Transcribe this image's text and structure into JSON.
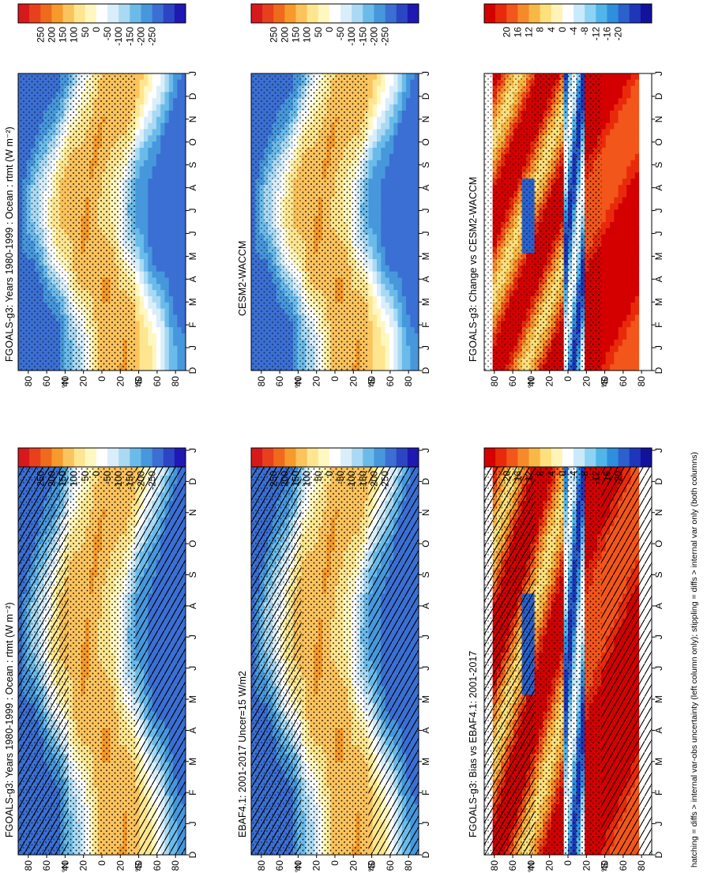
{
  "footnote": "hatching = diffs > internal var-obs uncertainty (left column only); stippling = diffs > internal var only (both columns)",
  "chart_data": [
    {
      "type": "heatmap",
      "title": "FGOALS-g3: Years 1980-1999 : Ocean : rtmt (W m⁻²)",
      "field": "model",
      "hatching": true,
      "stippling": true,
      "x_ticks": [
        "D",
        "J",
        "F",
        "M",
        "A",
        "M",
        "J",
        "J",
        "A",
        "S",
        "O",
        "N",
        "D",
        "J"
      ],
      "y_ticks": [
        "80",
        "60",
        "40",
        "20",
        "0",
        "20",
        "40",
        "60",
        "80"
      ],
      "lat_labels": [
        "°N",
        "°S"
      ],
      "colorbar": {
        "labels": [
          "250",
          "200",
          "150",
          "100",
          "50",
          "0",
          "-50",
          "-100",
          "-150",
          "-200",
          "-250"
        ]
      }
    },
    {
      "type": "heatmap",
      "title": "EBAF4.1: 2001-2017 Uncer=15 W/m2",
      "field": "model",
      "hatching": true,
      "stippling": true,
      "x_ticks": [
        "D",
        "J",
        "F",
        "M",
        "A",
        "M",
        "J",
        "J",
        "A",
        "S",
        "O",
        "N",
        "D",
        "J"
      ],
      "y_ticks": [
        "80",
        "60",
        "40",
        "20",
        "0",
        "20",
        "40",
        "60",
        "80"
      ],
      "lat_labels": [
        "°N",
        "°S"
      ],
      "colorbar": {
        "labels": [
          "250",
          "200",
          "150",
          "100",
          "50",
          "0",
          "-50",
          "-100",
          "-150",
          "-200",
          "-250"
        ]
      }
    },
    {
      "type": "heatmap",
      "title": "FGOALS-g3: Bias vs EBAF4.1: 2001-2017",
      "field": "diff",
      "hatching": true,
      "stippling": true,
      "x_ticks": [
        "D",
        "J",
        "F",
        "M",
        "A",
        "M",
        "J",
        "J",
        "A",
        "S",
        "O",
        "N",
        "D",
        "J"
      ],
      "y_ticks": [
        "80",
        "60",
        "40",
        "20",
        "0",
        "20",
        "40",
        "60",
        "80"
      ],
      "lat_labels": [
        "°N",
        "°S"
      ],
      "colorbar": {
        "labels": [
          "20",
          "16",
          "12",
          "8",
          "4",
          "0",
          "-4",
          "-8",
          "-12",
          "-16",
          "-20"
        ]
      }
    },
    {
      "type": "heatmap",
      "title": "",
      "field": "model",
      "hatching": false,
      "stippling": true,
      "x_ticks": [
        "D",
        "J",
        "F",
        "M",
        "A",
        "M",
        "J",
        "J",
        "A",
        "S",
        "O",
        "N",
        "D",
        "J"
      ],
      "y_ticks": [
        "80",
        "60",
        "40",
        "20",
        "0",
        "20",
        "40",
        "60",
        "80"
      ],
      "lat_labels": [
        "°N",
        "°S"
      ],
      "colorbar": {
        "labels": [
          "250",
          "200",
          "150",
          "100",
          "50",
          "0",
          "-50",
          "-100",
          "-150",
          "-200",
          "-250"
        ]
      }
    },
    {
      "type": "heatmap",
      "title": "CESM2-WACCM",
      "field": "model",
      "hatching": false,
      "stippling": true,
      "x_ticks": [
        "D",
        "J",
        "F",
        "M",
        "A",
        "M",
        "J",
        "J",
        "A",
        "S",
        "O",
        "N",
        "D",
        "J"
      ],
      "y_ticks": [
        "80",
        "60",
        "40",
        "20",
        "0",
        "20",
        "40",
        "60",
        "80"
      ],
      "lat_labels": [
        "°N",
        "°S"
      ],
      "colorbar": {
        "labels": [
          "250",
          "200",
          "150",
          "100",
          "50",
          "0",
          "-50",
          "-100",
          "-150",
          "-200",
          "-250"
        ]
      }
    },
    {
      "type": "heatmap",
      "title": "FGOALS-g3: Change vs CESM2-WACCM",
      "field": "diff",
      "hatching": false,
      "stippling": true,
      "x_ticks": [
        "D",
        "J",
        "F",
        "M",
        "A",
        "M",
        "J",
        "J",
        "A",
        "S",
        "O",
        "N",
        "D",
        "J"
      ],
      "y_ticks": [
        "80",
        "60",
        "40",
        "20",
        "0",
        "20",
        "40",
        "60",
        "80"
      ],
      "lat_labels": [
        "°N",
        "°S"
      ],
      "colorbar": {
        "labels": [
          "20",
          "16",
          "12",
          "8",
          "4",
          "0",
          "-4",
          "-8",
          "-12",
          "-16",
          "-20"
        ]
      }
    }
  ],
  "panel_titles": {
    "left_top": "FGOALS-g3: Years 1980-1999 : Ocean : rtmt (W m⁻²)",
    "left_mid": "EBAF4.1: 2001-2017 Uncer=15 W/m2",
    "left_bot": "FGOALS-g3: Bias vs EBAF4.1: 2001-2017",
    "right_top": "FGOALS-g3: Years 1980-1999 : Ocean : rtmt (W m⁻²)",
    "right_mid": "CESM2-WACCM",
    "right_bot": "FGOALS-g3: Change vs CESM2-WACCM"
  },
  "colors": {
    "model_scale": [
      "#d7191c",
      "#e8401c",
      "#f06a1e",
      "#f59a2b",
      "#fbc35c",
      "#fde68f",
      "#fff7c0",
      "#ffffff",
      "#d9eefa",
      "#a9d9f3",
      "#6bbbea",
      "#4797dc",
      "#3b6fd3",
      "#2c45c4",
      "#2018b3"
    ],
    "diff_scale": [
      "#d40000",
      "#e82a0a",
      "#f2561a",
      "#f68a2a",
      "#f8b846",
      "#fde07c",
      "#fff4b8",
      "#ffffff",
      "#c9eafa",
      "#8dd3f3",
      "#50b5ea",
      "#2e8fdc",
      "#2a61cc",
      "#1e36ba",
      "#12129d"
    ]
  }
}
